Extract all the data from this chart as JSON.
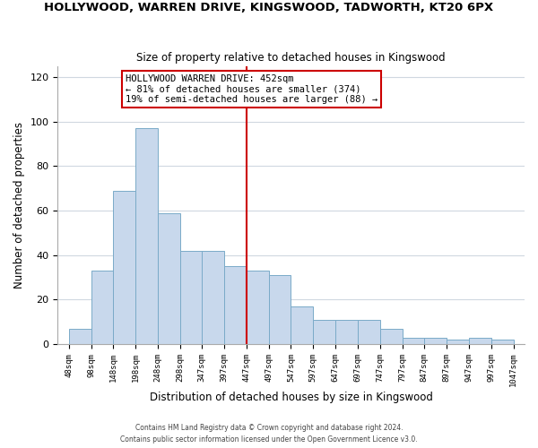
{
  "title": "HOLLYWOOD, WARREN DRIVE, KINGSWOOD, TADWORTH, KT20 6PX",
  "subtitle": "Size of property relative to detached houses in Kingswood",
  "xlabel": "Distribution of detached houses by size in Kingswood",
  "ylabel": "Number of detached properties",
  "bar_color": "#c8d8ec",
  "bar_edge_color": "#7aaac8",
  "bar_left_edges": [
    48,
    98,
    148,
    198,
    248,
    298,
    347,
    397,
    447,
    497,
    547,
    597,
    647,
    697,
    747,
    797,
    847,
    897,
    947,
    997
  ],
  "bar_heights": [
    7,
    33,
    69,
    97,
    59,
    42,
    42,
    35,
    33,
    31,
    17,
    11,
    11,
    11,
    7,
    3,
    3,
    2,
    3,
    2
  ],
  "bar_widths": [
    50,
    50,
    50,
    50,
    50,
    50,
    50,
    50,
    50,
    50,
    50,
    50,
    50,
    50,
    50,
    50,
    50,
    50,
    50,
    50
  ],
  "x_tick_labels": [
    "48sqm",
    "98sqm",
    "148sqm",
    "198sqm",
    "248sqm",
    "298sqm",
    "347sqm",
    "397sqm",
    "447sqm",
    "497sqm",
    "547sqm",
    "597sqm",
    "647sqm",
    "697sqm",
    "747sqm",
    "797sqm",
    "847sqm",
    "897sqm",
    "947sqm",
    "997sqm",
    "1047sqm"
  ],
  "x_tick_positions": [
    48,
    98,
    148,
    198,
    248,
    298,
    347,
    397,
    447,
    497,
    547,
    597,
    647,
    697,
    747,
    797,
    847,
    897,
    947,
    997,
    1047
  ],
  "ylim": [
    0,
    125
  ],
  "xlim": [
    23,
    1072
  ],
  "vline_x": 447,
  "vline_color": "#cc0000",
  "annotation_title": "HOLLYWOOD WARREN DRIVE: 452sqm",
  "annotation_line1": "← 81% of detached houses are smaller (374)",
  "annotation_line2": "19% of semi-detached houses are larger (88) →",
  "footer1": "Contains HM Land Registry data © Crown copyright and database right 2024.",
  "footer2": "Contains public sector information licensed under the Open Government Licence v3.0.",
  "background_color": "#ffffff",
  "plot_background_color": "#ffffff",
  "grid_color": "#d0d8e0"
}
